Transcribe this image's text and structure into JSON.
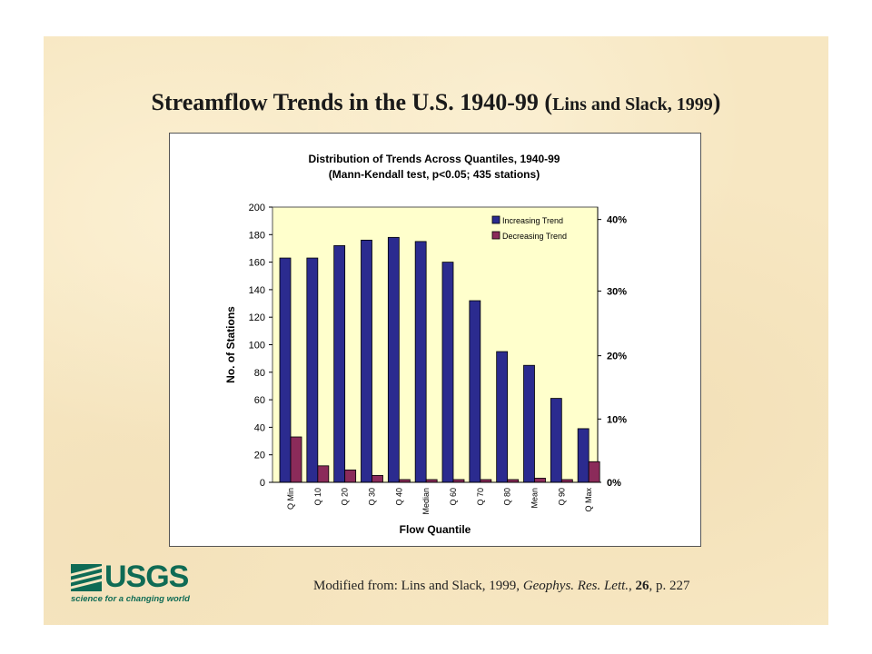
{
  "slide": {
    "title_main": "Streamflow Trends in the U.S. 1940-99 (",
    "title_cite": "Lins and Slack, 1999",
    "title_close": ")",
    "footer": {
      "prefix": "Modified from:  Lins and Slack, 1999, ",
      "journal": "Geophys. Res. Lett.",
      "sep": ", ",
      "volume": "26",
      "page": ", p. 227"
    },
    "logo": {
      "text": "USGS",
      "tagline": "science for a changing world",
      "color": "#0f6b55"
    }
  },
  "chart_data": {
    "type": "bar",
    "title": "Distribution of Trends Across Quantiles, 1940-99",
    "subtitle": "(Mann-Kendall test, p<0.05; 435 stations)",
    "xlabel": "Flow Quantile",
    "ylabel": "No. of Stations",
    "categories": [
      "Q Min",
      "Q 10",
      "Q 20",
      "Q 30",
      "Q 40",
      "Median",
      "Q 60",
      "Q 70",
      "Q 80",
      "Mean",
      "Q 90",
      "Q Max"
    ],
    "series": [
      {
        "name": "Increasing Trend",
        "color": "#2b2b8f",
        "values": [
          163,
          163,
          172,
          176,
          178,
          175,
          160,
          132,
          95,
          85,
          61,
          39
        ]
      },
      {
        "name": "Decreasing Trend",
        "color": "#8b2b5a",
        "values": [
          33,
          12,
          9,
          5,
          2,
          2,
          2,
          2,
          2,
          3,
          2,
          15
        ]
      }
    ],
    "ylim": [
      0,
      200
    ],
    "yticks": [
      "0",
      "20",
      "40",
      "60",
      "80",
      "100",
      "120",
      "140",
      "160",
      "180",
      "200"
    ],
    "y2ticks": [
      "0%",
      "10%",
      "20%",
      "30%",
      "40%"
    ],
    "y2_positions_stations": [
      0,
      46,
      92,
      139,
      191
    ],
    "plot_background": "#ffffcc",
    "legend_position": "top-right"
  }
}
